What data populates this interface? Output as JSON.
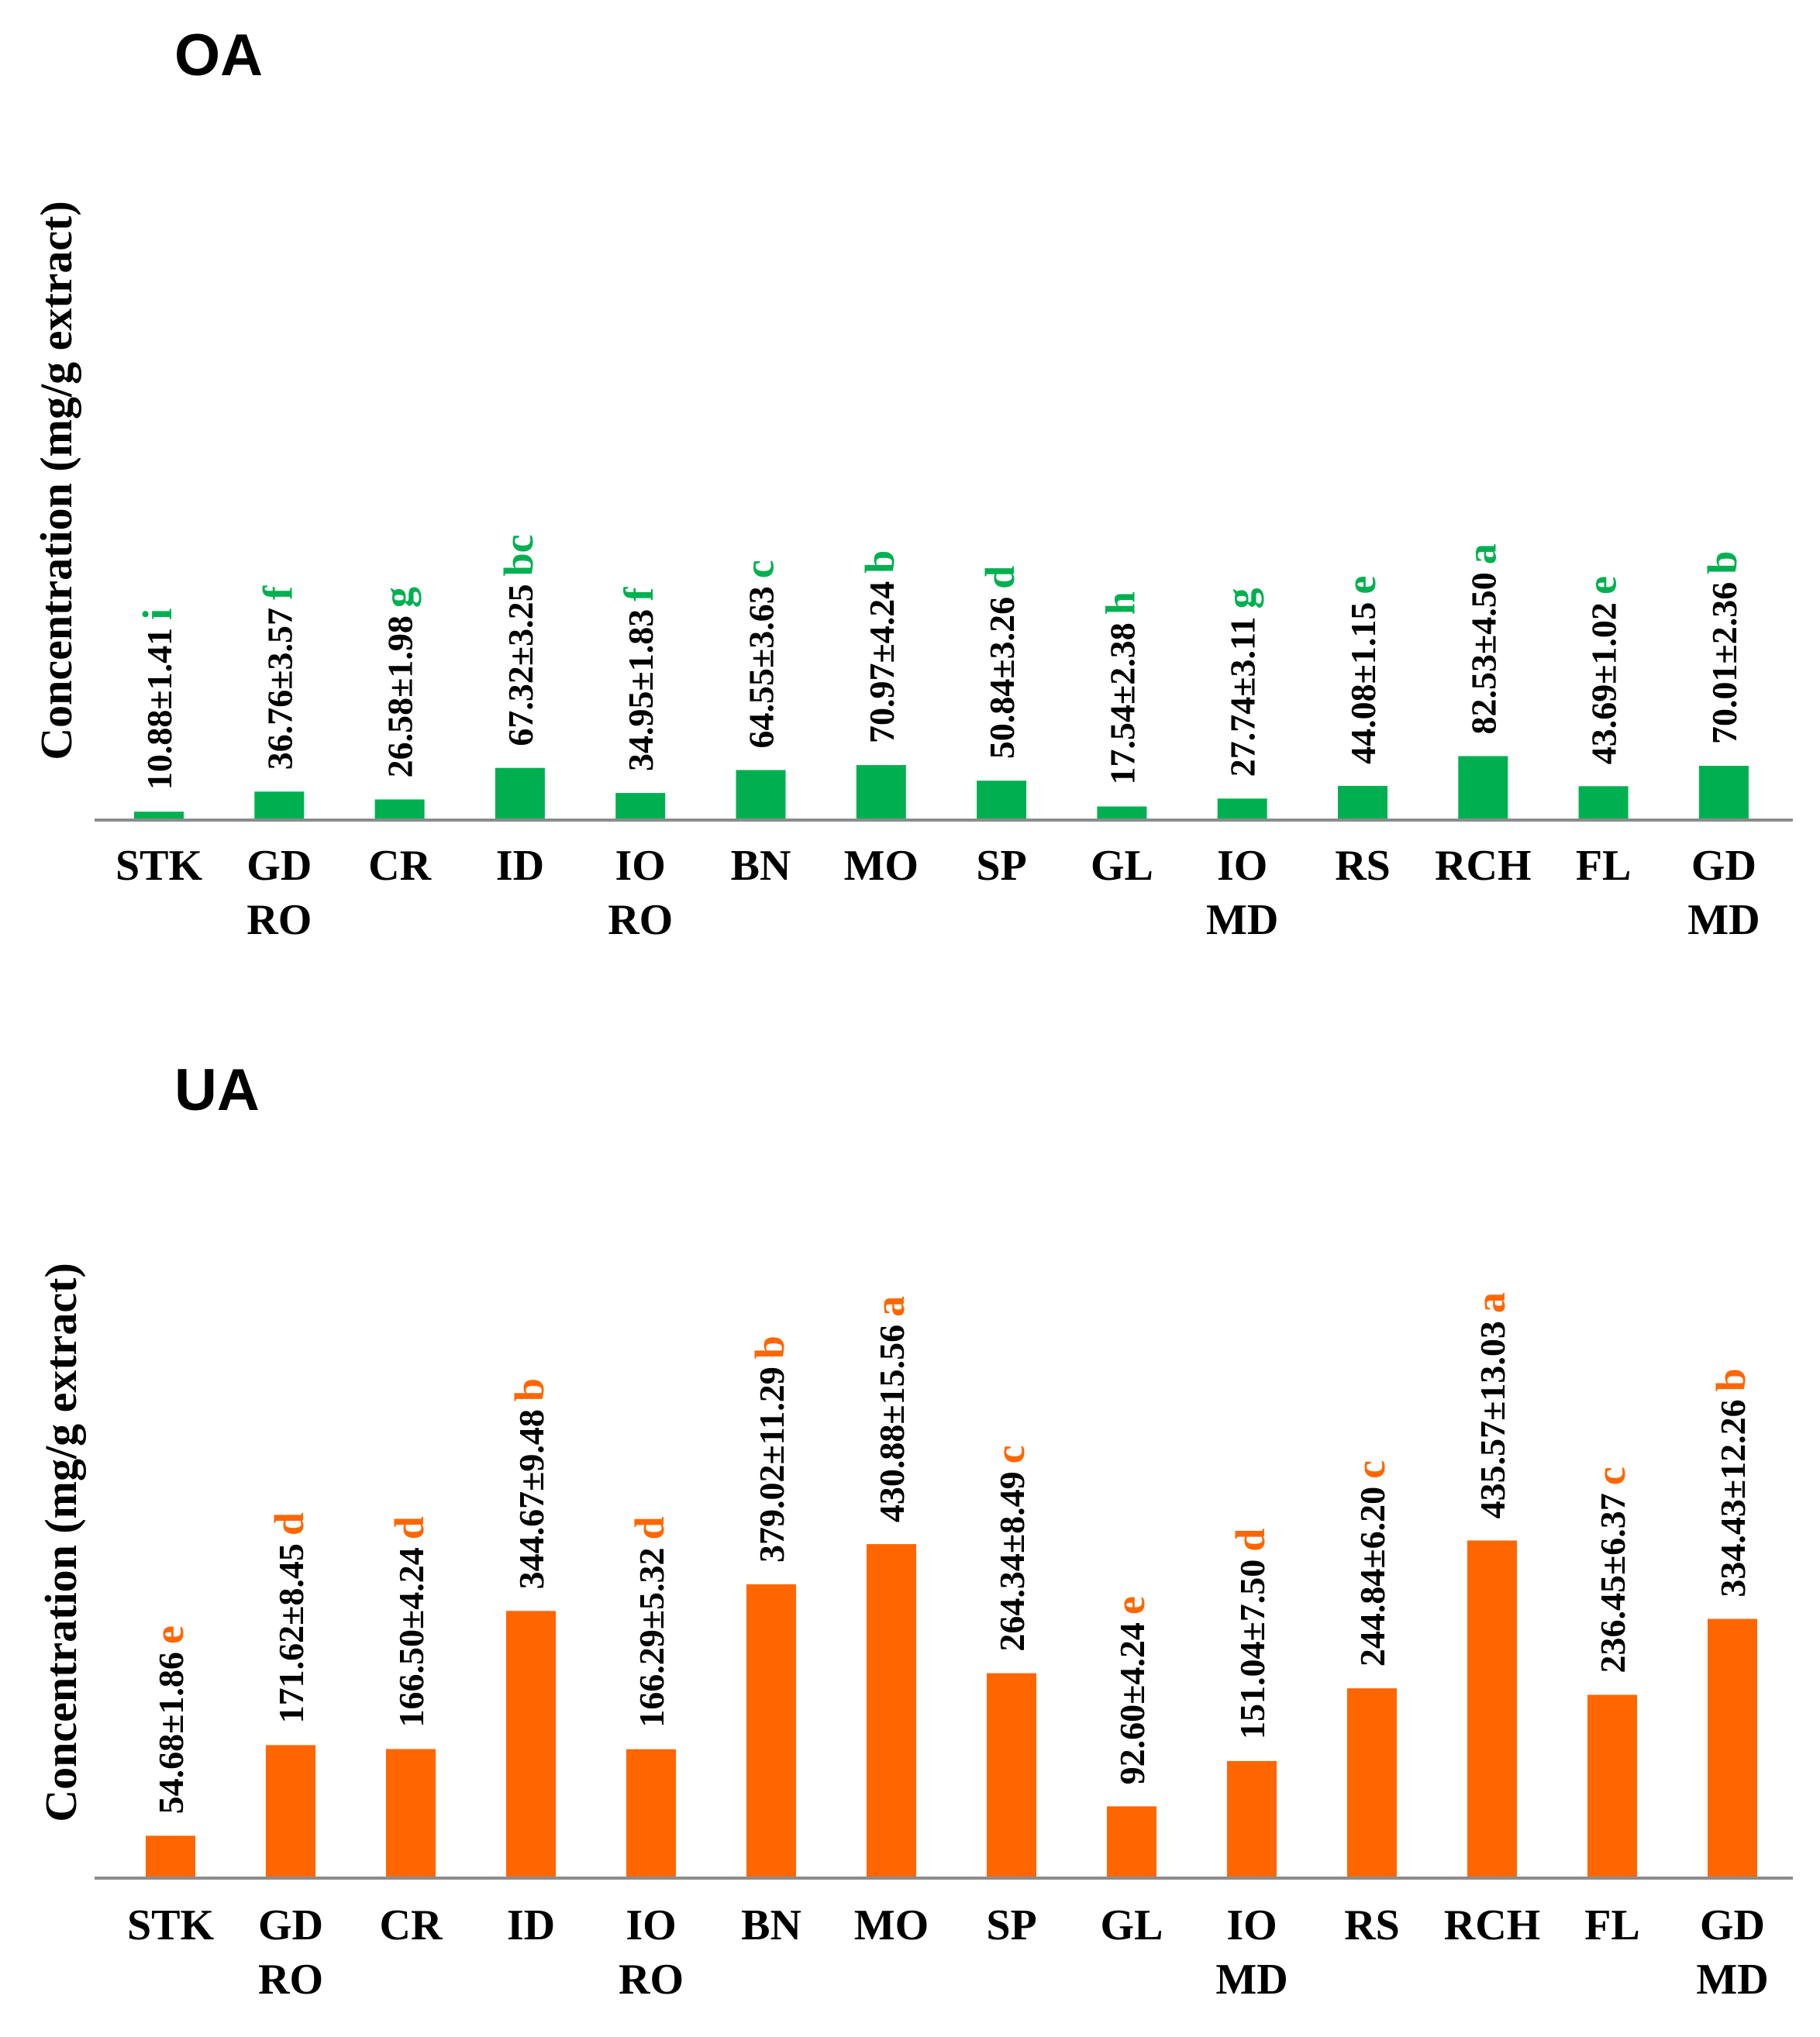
{
  "chart_data": [
    {
      "type": "bar",
      "title": "OA",
      "ylabel": "Concentration  (mg/g extract)",
      "xlabel": "",
      "ylim": [
        0,
        420
      ],
      "grid": false,
      "color": "#00b050",
      "categories": [
        "STK",
        "GD RO",
        "CR",
        "ID",
        "IO RO",
        "BN",
        "MO",
        "SP",
        "GL",
        "IO MD",
        "RS",
        "RCH",
        "FL",
        "GD MD"
      ],
      "category_lines": [
        [
          "STK"
        ],
        [
          "GD",
          "RO"
        ],
        [
          "CR"
        ],
        [
          "ID"
        ],
        [
          "IO",
          "RO"
        ],
        [
          "BN"
        ],
        [
          "MO"
        ],
        [
          "SP"
        ],
        [
          "GL"
        ],
        [
          "IO",
          "MD"
        ],
        [
          "RS"
        ],
        [
          "RCH"
        ],
        [
          "FL"
        ],
        [
          "GD",
          "MD"
        ]
      ],
      "values": [
        10.88,
        36.76,
        26.58,
        67.32,
        34.95,
        64.55,
        70.97,
        50.84,
        17.54,
        27.74,
        44.08,
        82.53,
        43.69,
        70.01
      ],
      "data_labels": [
        "10.88±1.41",
        "36.76±3.57",
        "26.58±1.98",
        "67.32±3.25",
        "34.95±1.83",
        "64.55±3.63",
        "70.97±4.24",
        "50.84±3.26",
        "17.54±2.38",
        "27.74±3.11",
        "44.08±1.15",
        "82.53±4.50",
        "43.69±1.02",
        "70.01±2.36"
      ],
      "significance_letters": [
        "i",
        "f",
        "g",
        "bc",
        "f",
        "c",
        "b",
        "d",
        "h",
        "g",
        "e",
        "a",
        "e",
        "b"
      ]
    },
    {
      "type": "bar",
      "title": "UA",
      "ylabel": "Concentration  (mg/g extract)",
      "xlabel": "",
      "ylim": [
        0,
        670
      ],
      "grid": false,
      "color": "#ff6600",
      "categories": [
        "STK",
        "GD RO",
        "CR",
        "ID",
        "IO RO",
        "BN",
        "MO",
        "SP",
        "GL",
        "IO MD",
        "RS",
        "RCH",
        "FL",
        "GD MD"
      ],
      "category_lines": [
        [
          "STK"
        ],
        [
          "GD",
          "RO"
        ],
        [
          "CR"
        ],
        [
          "ID"
        ],
        [
          "IO",
          "RO"
        ],
        [
          "BN"
        ],
        [
          "MO"
        ],
        [
          "SP"
        ],
        [
          "GL"
        ],
        [
          "IO",
          "MD"
        ],
        [
          "RS"
        ],
        [
          "RCH"
        ],
        [
          "FL"
        ],
        [
          "GD",
          "MD"
        ]
      ],
      "values": [
        54.68,
        171.62,
        166.5,
        344.67,
        166.29,
        379.02,
        430.88,
        264.34,
        92.6,
        151.04,
        244.84,
        435.57,
        236.45,
        334.43
      ],
      "data_labels": [
        "54.68±1.86",
        "171.62±8.45",
        "166.50±4.24",
        "344.67±9.48",
        "166.29±5.32",
        "379.02±11.29",
        "430.88±15.56",
        "264.34±8.49",
        "92.60±4.24",
        "151.04±7.50",
        "244.84±6.20",
        "435.57±13.03",
        "236.45±6.37",
        "334.43±12.26"
      ],
      "significance_letters": [
        "e",
        "d",
        "d",
        "b",
        "d",
        "b",
        "a",
        "c",
        "e",
        "d",
        "c",
        "a",
        "c",
        "b"
      ]
    }
  ]
}
